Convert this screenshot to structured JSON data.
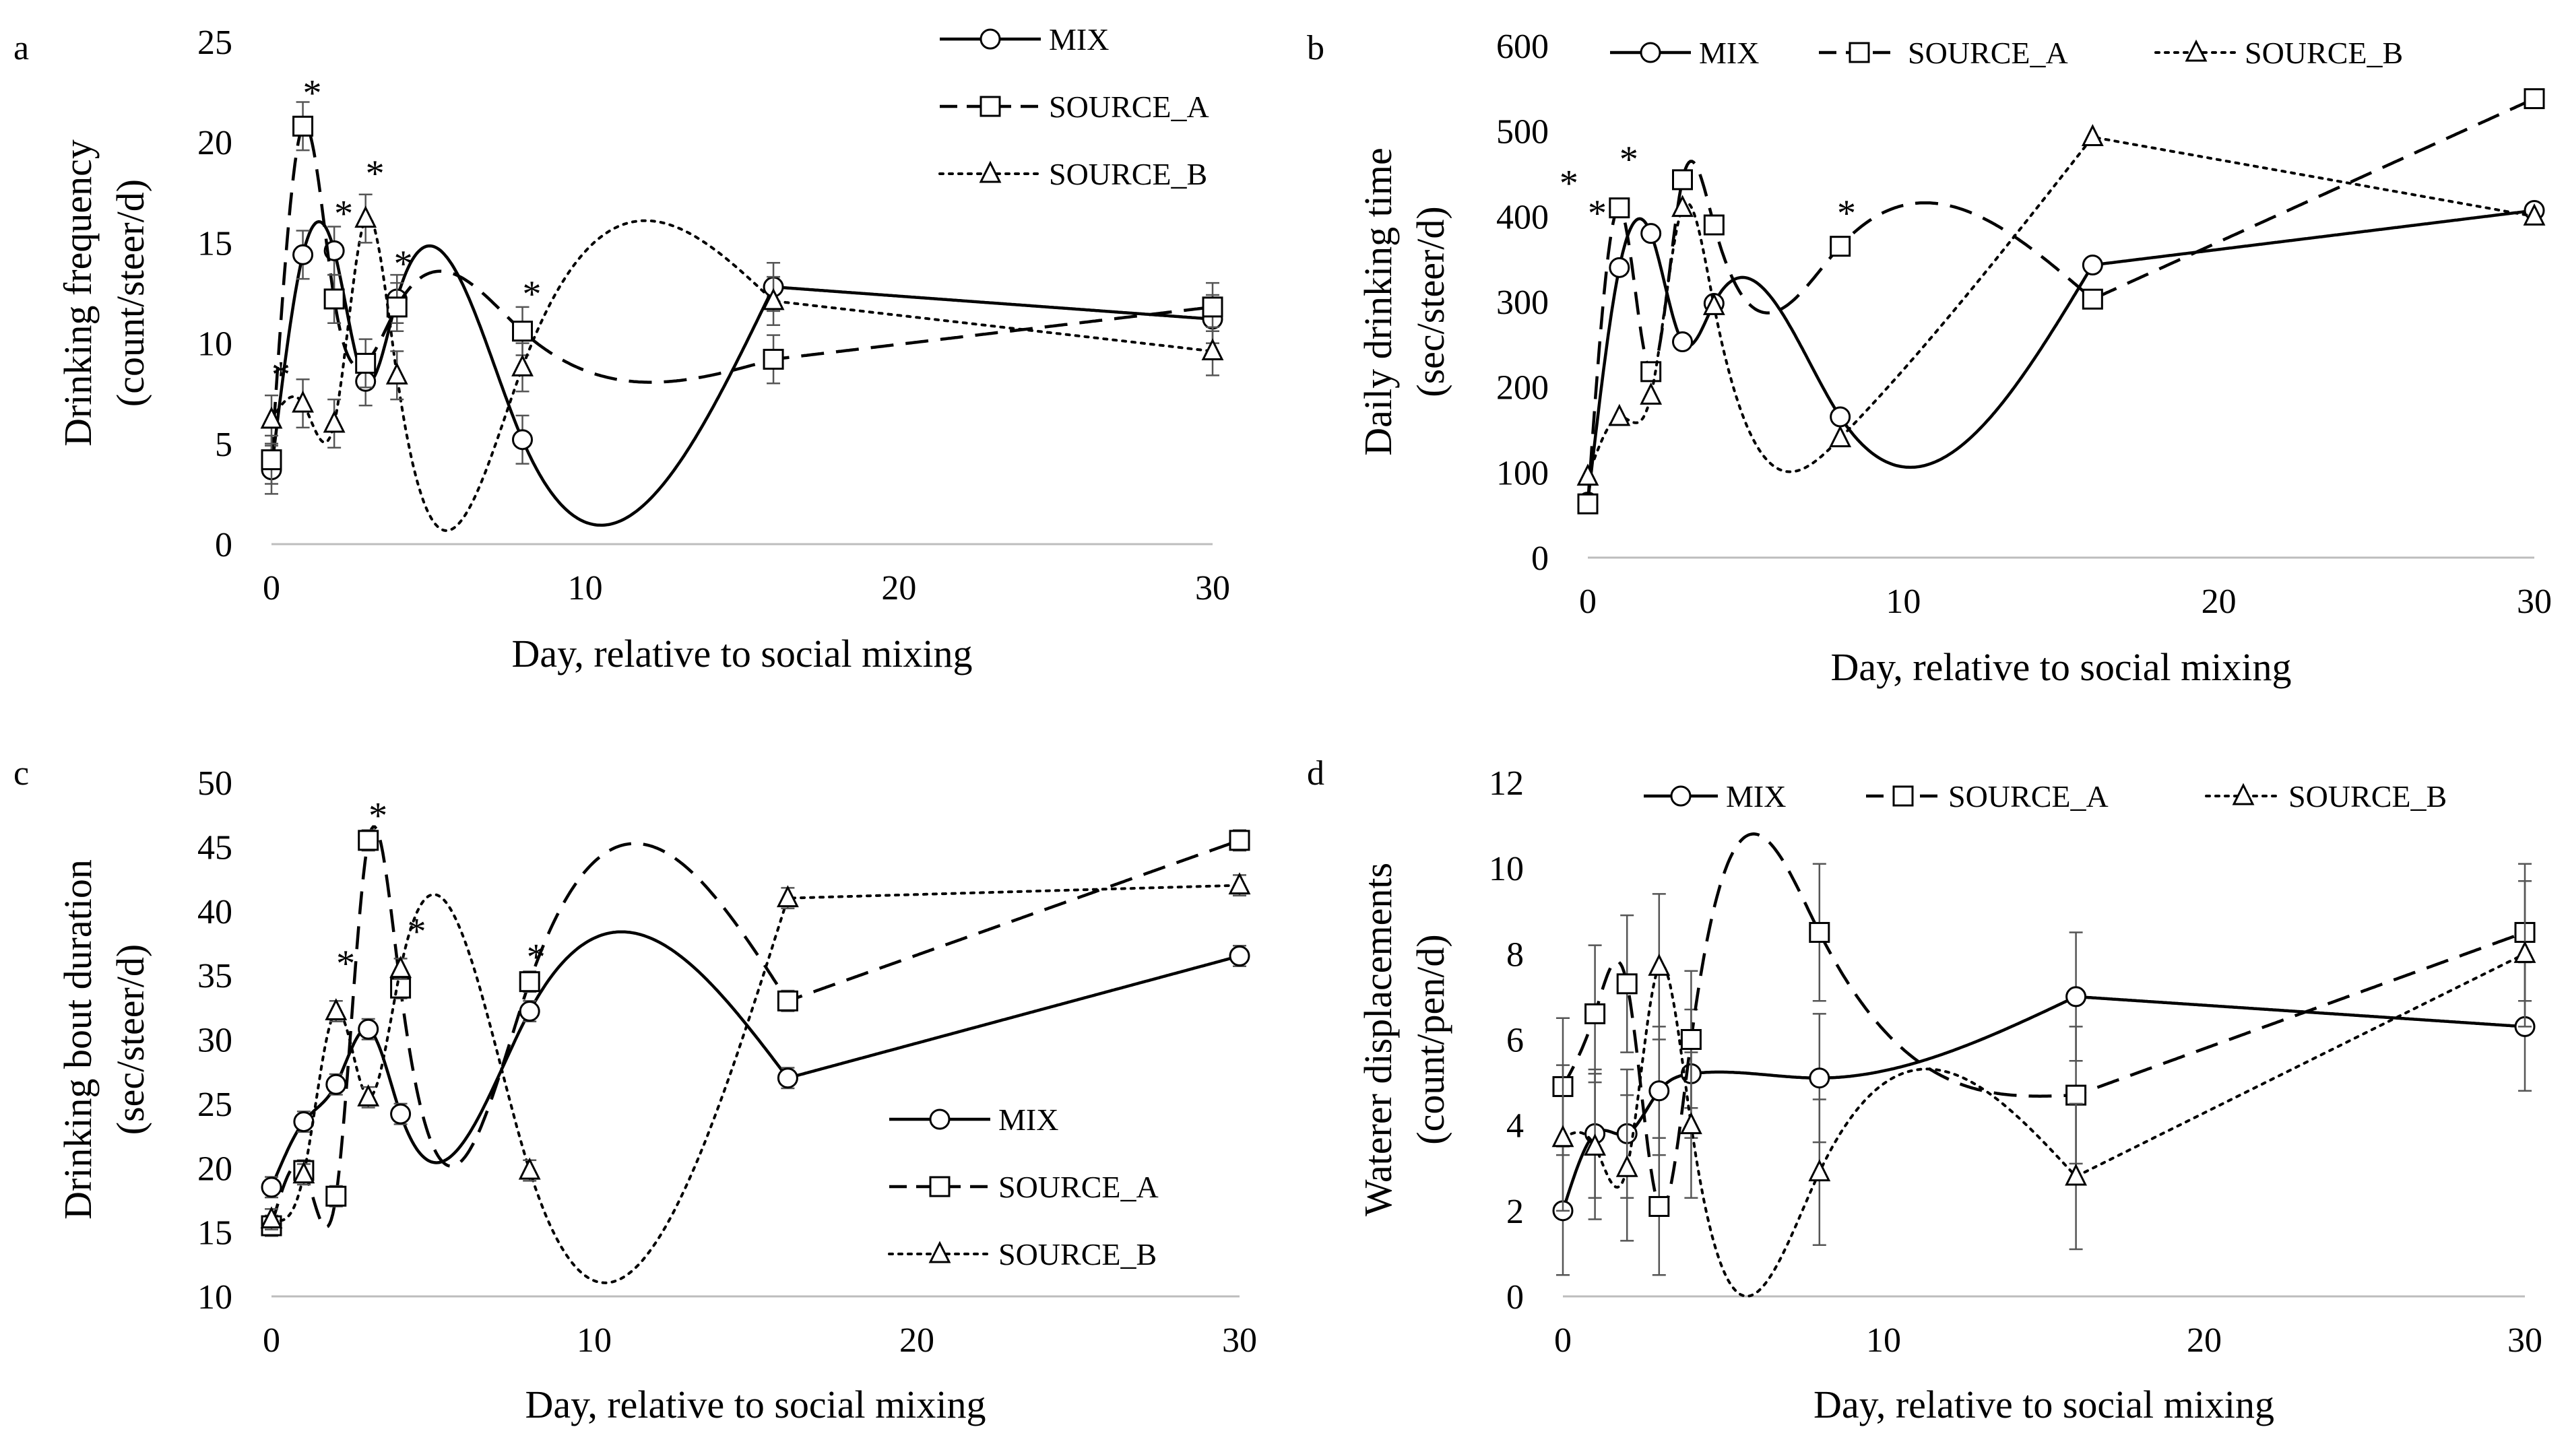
{
  "chart_data": [
    {
      "type": "line",
      "panel_letter": "a",
      "xlabel": "Day, relative to social mixing",
      "ylabel_line1": "Drinking frequency",
      "ylabel_line2": "(count/steer/d)",
      "xlim": [
        0,
        30
      ],
      "ylim": [
        0,
        25
      ],
      "xticks": [
        0,
        10,
        20,
        30
      ],
      "yticks": [
        0,
        5,
        10,
        15,
        20,
        25
      ],
      "legend_layout": "vertical",
      "legend_position": "top-right",
      "series": [
        {
          "name": "MIX",
          "style": "solid",
          "marker": "circle",
          "x": [
            0,
            1,
            2,
            3,
            4,
            8,
            16,
            30
          ],
          "y": [
            3.7,
            14.4,
            14.6,
            8.1,
            12.2,
            5.2,
            12.8,
            11.2
          ],
          "err": [
            1.2,
            1.2,
            1.2,
            1.2,
            1.2,
            1.2,
            1.2,
            1.2
          ]
        },
        {
          "name": "SOURCE_A",
          "style": "dashed",
          "marker": "square",
          "x": [
            0,
            1,
            2,
            3,
            4,
            8,
            16,
            30
          ],
          "y": [
            4.2,
            20.8,
            12.2,
            9.0,
            11.8,
            10.6,
            9.2,
            11.8
          ],
          "err": [
            1.2,
            1.2,
            1.2,
            1.2,
            1.2,
            1.2,
            1.2,
            1.2
          ]
        },
        {
          "name": "SOURCE_B",
          "style": "dotted",
          "marker": "triangle",
          "x": [
            0,
            1,
            2,
            3,
            4,
            8,
            16,
            30
          ],
          "y": [
            6.2,
            7.0,
            6.0,
            16.2,
            8.4,
            8.8,
            12.1,
            9.6
          ],
          "err": [
            1.2,
            1.2,
            1.2,
            1.2,
            1.2,
            1.2,
            1.2,
            1.2
          ]
        }
      ],
      "annotations": [
        {
          "text": "*",
          "x": 0.3,
          "y": 8.5
        },
        {
          "text": "*",
          "x": 1.3,
          "y": 22.5
        },
        {
          "text": "*",
          "x": 2.3,
          "y": 16.5
        },
        {
          "text": "*",
          "x": 3.3,
          "y": 18.5
        },
        {
          "text": "*",
          "x": 4.2,
          "y": 14.0
        },
        {
          "text": "*",
          "x": 8.3,
          "y": 12.5
        }
      ]
    },
    {
      "type": "line",
      "panel_letter": "b",
      "xlabel": "Day, relative to social mixing",
      "ylabel_line1": "Daily drinking time",
      "ylabel_line2": "(sec/steer/d)",
      "xlim": [
        0,
        30
      ],
      "ylim": [
        0,
        600
      ],
      "xticks": [
        0,
        10,
        20,
        30
      ],
      "yticks": [
        0,
        100,
        200,
        300,
        400,
        500,
        600
      ],
      "legend_layout": "horizontal",
      "legend_position": "top",
      "series": [
        {
          "name": "MIX",
          "style": "solid",
          "marker": "circle",
          "x": [
            0,
            1,
            2,
            3,
            4,
            8,
            16,
            30
          ],
          "y": [
            65,
            340,
            380,
            253,
            298,
            165,
            343,
            407
          ],
          "err": []
        },
        {
          "name": "SOURCE_A",
          "style": "dashed",
          "marker": "square",
          "x": [
            0,
            1,
            2,
            3,
            4,
            8,
            16,
            30
          ],
          "y": [
            63,
            410,
            218,
            443,
            390,
            365,
            303,
            538
          ],
          "err": []
        },
        {
          "name": "SOURCE_B",
          "style": "dotted",
          "marker": "triangle",
          "x": [
            0,
            1,
            2,
            3,
            4,
            8,
            16,
            30
          ],
          "y": [
            95,
            165,
            190,
            410,
            295,
            140,
            493,
            400
          ],
          "err": []
        }
      ],
      "annotations": [
        {
          "text": "*",
          "x": -0.6,
          "y": 440
        },
        {
          "text": "*",
          "x": 0.3,
          "y": 405
        },
        {
          "text": "*",
          "x": 1.3,
          "y": 468
        },
        {
          "text": "*",
          "x": 8.2,
          "y": 405
        }
      ]
    },
    {
      "type": "line",
      "panel_letter": "c",
      "xlabel": "Day, relative to social mixing",
      "ylabel_line1": "Drinking bout duration",
      "ylabel_line2": "(sec/steer/d)",
      "xlim": [
        0,
        30
      ],
      "ylim": [
        10,
        50
      ],
      "xticks": [
        0,
        10,
        20,
        30
      ],
      "yticks": [
        10,
        15,
        20,
        25,
        30,
        35,
        40,
        45,
        50
      ],
      "legend_layout": "vertical",
      "legend_position": "lower-right",
      "series": [
        {
          "name": "MIX",
          "style": "solid",
          "marker": "circle",
          "x": [
            0,
            1,
            2,
            3,
            4,
            8,
            16,
            30
          ],
          "y": [
            18.5,
            23.6,
            26.5,
            30.8,
            24.2,
            32.2,
            27.0,
            36.5
          ],
          "err": [
            0.8,
            0.8,
            0.8,
            0.8,
            0.8,
            0.8,
            0.8,
            0.8
          ]
        },
        {
          "name": "SOURCE_A",
          "style": "dashed",
          "marker": "square",
          "x": [
            0,
            1,
            2,
            3,
            4,
            8,
            16,
            30
          ],
          "y": [
            15.5,
            19.8,
            17.8,
            45.5,
            34.0,
            34.5,
            33.0,
            45.5
          ],
          "err": [
            0.8,
            0.8,
            0.8,
            0.8,
            0.8,
            0.8,
            0.8,
            0.8
          ]
        },
        {
          "name": "SOURCE_B",
          "style": "dotted",
          "marker": "triangle",
          "x": [
            0,
            1,
            2,
            3,
            4,
            8,
            16,
            30
          ],
          "y": [
            16.0,
            19.5,
            32.2,
            25.5,
            35.5,
            19.8,
            41.0,
            42.0
          ],
          "err": [
            0.8,
            0.8,
            0.8,
            0.8,
            0.8,
            0.8,
            0.8,
            0.8
          ]
        }
      ],
      "annotations": [
        {
          "text": "*",
          "x": 2.3,
          "y": 36.0
        },
        {
          "text": "*",
          "x": 3.3,
          "y": 47.5
        },
        {
          "text": "*",
          "x": 4.5,
          "y": 38.5
        },
        {
          "text": "*",
          "x": 8.2,
          "y": 36.5
        }
      ]
    },
    {
      "type": "line",
      "panel_letter": "d",
      "xlabel": "Day, relative to social mixing",
      "ylabel_line1": "Waterer displacements",
      "ylabel_line2": "(count/pen/d)",
      "xlim": [
        0,
        30
      ],
      "ylim": [
        0,
        12
      ],
      "xticks": [
        0,
        10,
        20,
        30
      ],
      "yticks": [
        0,
        2,
        4,
        6,
        8,
        10,
        12
      ],
      "legend_layout": "horizontal",
      "legend_position": "top",
      "series": [
        {
          "name": "MIX",
          "style": "solid",
          "marker": "circle",
          "x": [
            0,
            1,
            2,
            3,
            4,
            8,
            16,
            30
          ],
          "y": [
            2.0,
            3.8,
            3.8,
            4.8,
            5.2,
            5.1,
            7.0,
            6.3
          ],
          "err": [
            1.5,
            1.5,
            1.5,
            1.5,
            1.5,
            1.5,
            1.5,
            1.5
          ]
        },
        {
          "name": "SOURCE_A",
          "style": "dashed",
          "marker": "square",
          "x": [
            0,
            1,
            2,
            3,
            4,
            8,
            16,
            30
          ],
          "y": [
            4.9,
            6.6,
            7.3,
            2.1,
            6.0,
            8.5,
            4.7,
            8.5
          ],
          "err": [
            1.6,
            1.6,
            1.6,
            1.6,
            1.6,
            1.6,
            1.6,
            1.6
          ]
        },
        {
          "name": "SOURCE_B",
          "style": "dotted",
          "marker": "triangle",
          "x": [
            0,
            1,
            2,
            3,
            4,
            8,
            16,
            30
          ],
          "y": [
            3.7,
            3.5,
            3.0,
            7.7,
            4.0,
            2.9,
            2.8,
            8.0
          ],
          "err": [
            1.7,
            1.7,
            1.7,
            1.7,
            1.7,
            1.7,
            1.7,
            1.7
          ]
        }
      ],
      "annotations": []
    }
  ]
}
